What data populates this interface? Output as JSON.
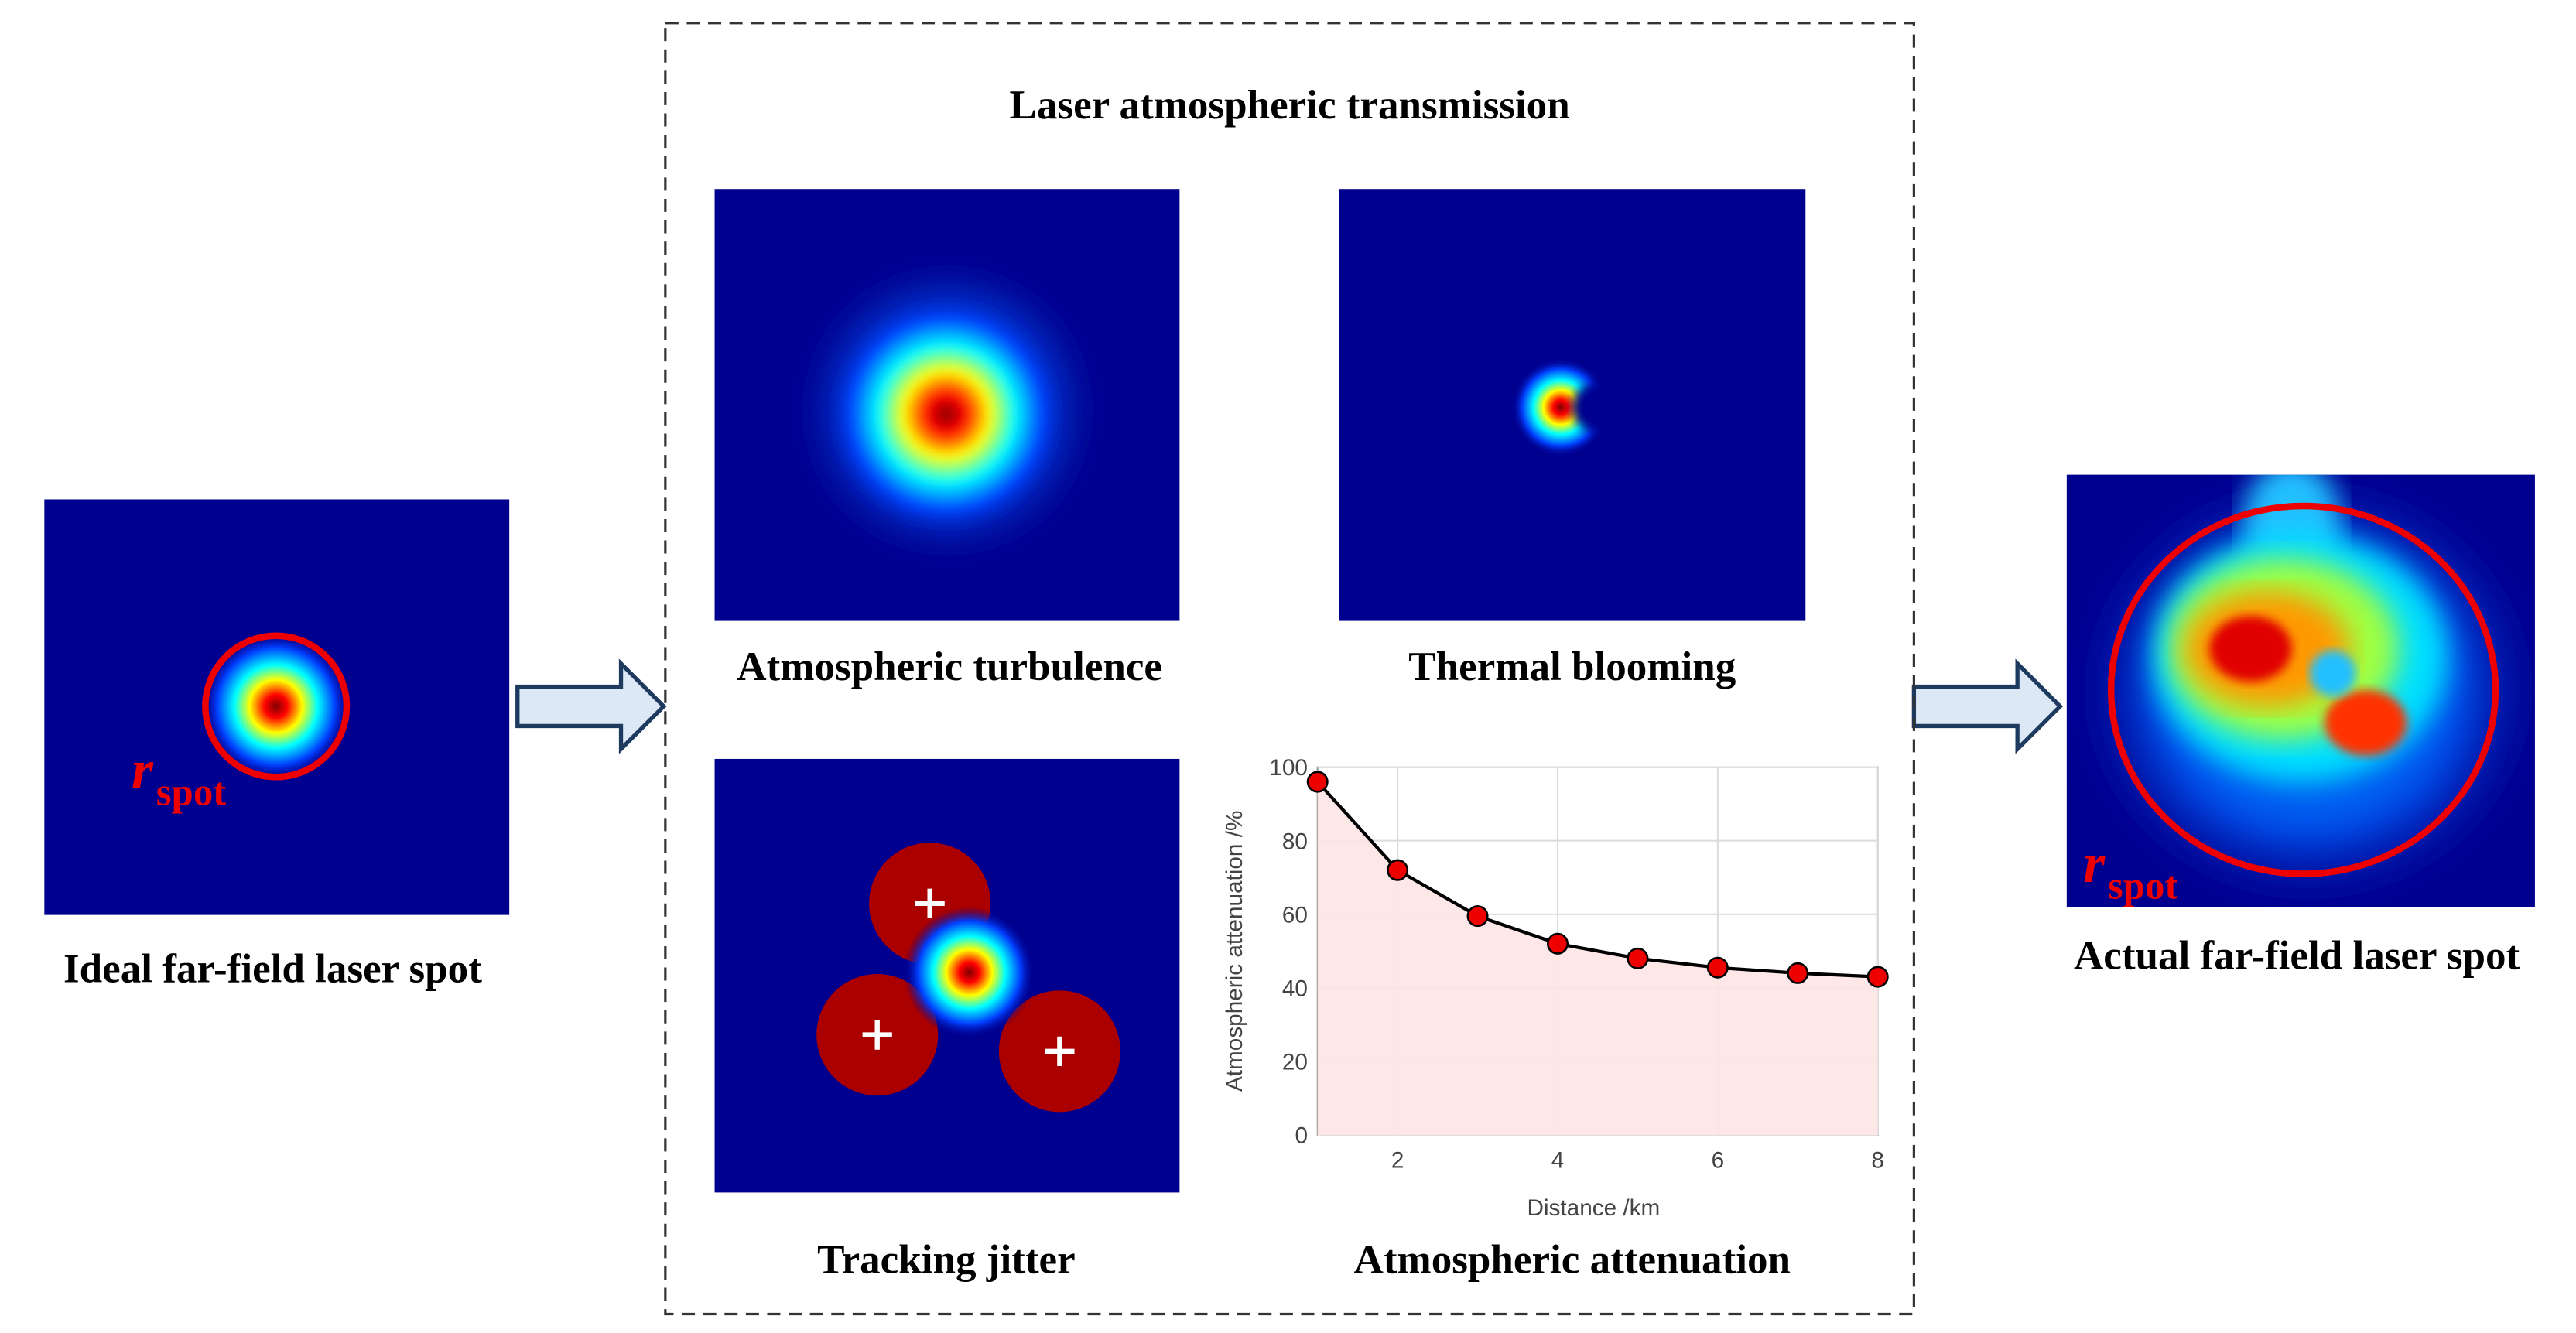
{
  "title": "Laser atmospheric transmission",
  "input": {
    "label": "Ideal far-field laser spot",
    "symbol": "r",
    "subscript": "spot"
  },
  "output": {
    "label": "Actual far-field laser spot",
    "symbol": "r",
    "subscript": "spot"
  },
  "panels": [
    "Atmospheric turbulence",
    "Thermal blooming",
    "Tracking jitter",
    "Atmospheric attenuation"
  ],
  "chart_data": {
    "type": "line",
    "x": [
      1,
      2,
      3,
      4,
      5,
      6,
      7,
      8
    ],
    "values": [
      96,
      72,
      59.5,
      52,
      48,
      45.5,
      44,
      43
    ],
    "xlim": [
      1,
      8
    ],
    "xticks": [
      2,
      4,
      6,
      8
    ],
    "ylim": [
      0,
      100
    ],
    "yticks": [
      0,
      20,
      40,
      60,
      80,
      100
    ],
    "x_label": "Distance /km",
    "y_label": "Atmospheric attenuation /%",
    "grid": true,
    "line_color": "#000000",
    "marker_color": "#ee0000",
    "fill_color": "#fde4e4"
  }
}
